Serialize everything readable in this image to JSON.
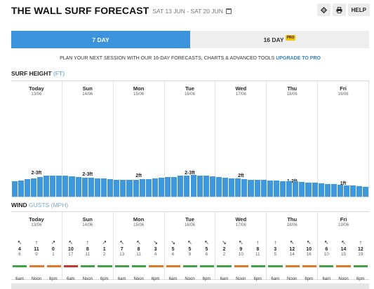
{
  "header": {
    "title": "THE WALL SURF FORECAST",
    "date_range": "SAT 13 JUN - SAT 20 JUN",
    "settings_icon": "gear-icon",
    "print_icon": "print-icon",
    "help_label": "HELP"
  },
  "tabs": [
    {
      "label": "7 DAY",
      "active": true
    },
    {
      "label": "16 DAY",
      "badge": "PRO",
      "active": false
    }
  ],
  "promo": {
    "text": "PLAN YOUR NEXT SESSION WITH OUR 16-DAY FORECASTS, CHARTS & ADVANCED TOOLS",
    "link": "UPGRADE TO PRO"
  },
  "surf": {
    "label": "SURF HEIGHT",
    "unit": "(FT)",
    "days": [
      {
        "name": "Today",
        "date": "13/06",
        "wave": "2-3ft"
      },
      {
        "name": "Sun",
        "date": "14/06",
        "wave": "2-3ft"
      },
      {
        "name": "Mon",
        "date": "15/06",
        "wave": "2ft"
      },
      {
        "name": "Tue",
        "date": "16/06",
        "wave": "2-3ft"
      },
      {
        "name": "Wed",
        "date": "17/06",
        "wave": "2ft"
      },
      {
        "name": "Thu",
        "date": "18/06",
        "wave": "1-2ft"
      },
      {
        "name": "Fri",
        "date": "19/06",
        "wave": "1ft"
      }
    ],
    "bar_color": "#3f97dc",
    "bar_levels": [
      0.54,
      0.58,
      0.62,
      0.66,
      0.7,
      0.74,
      0.76,
      0.76,
      0.74,
      0.72,
      0.7,
      0.68,
      0.67,
      0.66,
      0.64,
      0.62,
      0.61,
      0.6,
      0.6,
      0.61,
      0.62,
      0.63,
      0.65,
      0.67,
      0.69,
      0.71,
      0.74,
      0.76,
      0.77,
      0.76,
      0.74,
      0.72,
      0.7,
      0.68,
      0.66,
      0.64,
      0.62,
      0.61,
      0.6,
      0.59,
      0.58,
      0.57,
      0.56,
      0.55,
      0.54,
      0.52,
      0.51,
      0.5,
      0.48,
      0.46,
      0.45,
      0.43,
      0.41,
      0.39,
      0.37,
      0.35
    ]
  },
  "wind": {
    "label": "WIND",
    "unit": "GUSTS (MPH)",
    "days": [
      {
        "name": "Today",
        "date": "13/06",
        "slots": [
          {
            "dir": "↖",
            "speed": "4",
            "gust": "6"
          },
          {
            "dir": "↑",
            "speed": "11",
            "gust": "9"
          },
          {
            "dir": "↗",
            "speed": "0",
            "gust": "1"
          }
        ]
      },
      {
        "name": "Sun",
        "date": "14/06",
        "slots": [
          {
            "dir": "↖",
            "speed": "10",
            "gust": "17"
          },
          {
            "dir": "↑",
            "speed": "8",
            "gust": "11"
          },
          {
            "dir": "↗",
            "speed": "1",
            "gust": "2"
          }
        ]
      },
      {
        "name": "Mon",
        "date": "15/06",
        "slots": [
          {
            "dir": "↖",
            "speed": "7",
            "gust": "13"
          },
          {
            "dir": "↖",
            "speed": "8",
            "gust": "11"
          },
          {
            "dir": "↘",
            "speed": "3",
            "gust": "4"
          }
        ]
      },
      {
        "name": "Tue",
        "date": "16/06",
        "slots": [
          {
            "dir": "↘",
            "speed": "5",
            "gust": "6"
          },
          {
            "dir": "↖",
            "speed": "5",
            "gust": "9"
          },
          {
            "dir": "↖",
            "speed": "5",
            "gust": "6"
          }
        ]
      },
      {
        "name": "Wed",
        "date": "17/06",
        "slots": [
          {
            "dir": "↘",
            "speed": "2",
            "gust": "2"
          },
          {
            "dir": "↖",
            "speed": "9",
            "gust": "10"
          },
          {
            "dir": "↑",
            "speed": "8",
            "gust": "11"
          }
        ]
      },
      {
        "name": "Thu",
        "date": "18/06",
        "slots": [
          {
            "dir": "↑",
            "speed": "3",
            "gust": "5"
          },
          {
            "dir": "↖",
            "speed": "12",
            "gust": "14"
          },
          {
            "dir": "↖",
            "speed": "10",
            "gust": "16"
          }
        ]
      },
      {
        "name": "Fri",
        "date": "19/06",
        "slots": [
          {
            "dir": "↖",
            "speed": "6",
            "gust": "10"
          },
          {
            "dir": "↖",
            "speed": "14",
            "gust": "15"
          },
          {
            "dir": "↑",
            "speed": "12",
            "gust": "19"
          }
        ]
      }
    ],
    "time_labels": [
      "6am",
      "Noon",
      "6pm"
    ],
    "rating_colors": {
      "good": "#43a047",
      "fair": "#e0782a",
      "poor": "#c0392b"
    },
    "ratings": [
      [
        "good",
        "fair",
        "fair"
      ],
      [
        "poor",
        "good",
        "good"
      ],
      [
        "good",
        "good",
        "fair"
      ],
      [
        "fair",
        "good",
        "good"
      ],
      [
        "good",
        "fair",
        "good"
      ],
      [
        "good",
        "fair",
        "fair"
      ],
      [
        "good",
        "fair",
        "good"
      ]
    ]
  }
}
